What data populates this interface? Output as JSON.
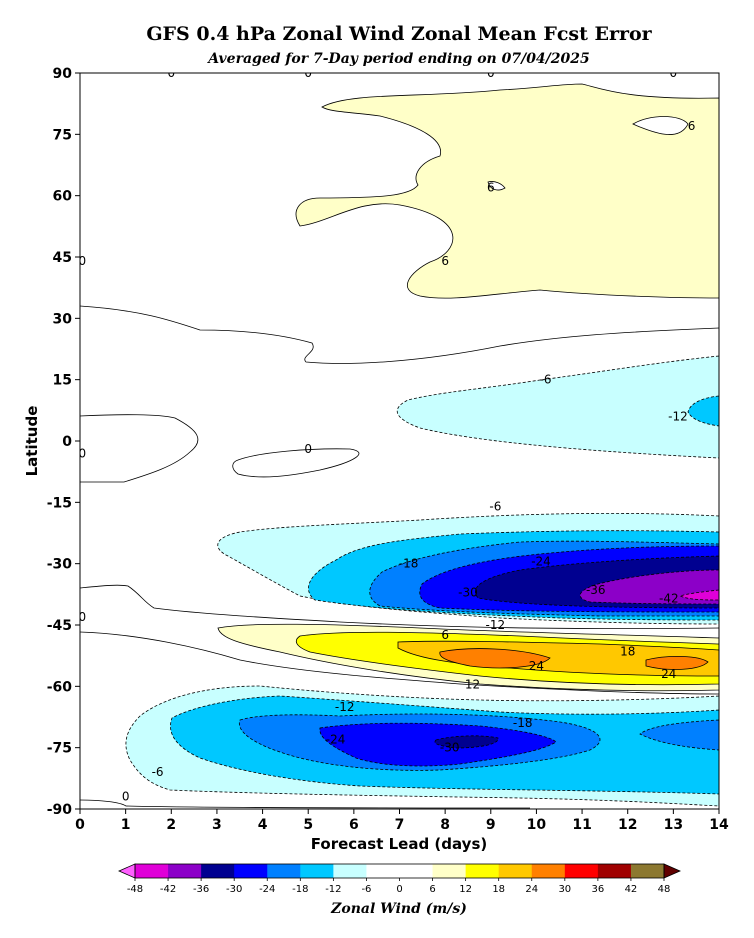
{
  "chart_data": {
    "type": "contour",
    "title": "GFS 0.4 hPa Zonal Wind Zonal Mean Fcst Error",
    "subtitle": "Averaged for 7-Day period ending on 07/04/2025",
    "xlabel": "Forecast Lead (days)",
    "ylabel": "Latitude",
    "xlim": [
      0,
      14
    ],
    "ylim": [
      -90,
      90
    ],
    "x_ticks": [
      0,
      1,
      2,
      3,
      4,
      5,
      6,
      7,
      8,
      9,
      10,
      11,
      12,
      13,
      14
    ],
    "y_ticks": [
      90,
      75,
      60,
      45,
      30,
      15,
      0,
      -15,
      -30,
      -45,
      -60,
      -75,
      -90
    ],
    "colorbar": {
      "label": "Zonal Wind (m/s)",
      "levels": [
        -48,
        -42,
        -36,
        -30,
        -24,
        -18,
        -12,
        -6,
        0,
        6,
        12,
        18,
        24,
        30,
        36,
        42,
        48
      ],
      "colors": [
        "#e000d8",
        "#8c00c8",
        "#000090",
        "#0000ff",
        "#0080ff",
        "#00c8ff",
        "#c8ffff",
        "#ffffff",
        "#ffffff",
        "#ffffc8",
        "#ffff00",
        "#ffc800",
        "#ff8000",
        "#ff0000",
        "#a00000",
        "#8c7830"
      ],
      "under_color": "#ff60ff",
      "over_color": "#600000"
    },
    "contour_labels": [
      {
        "value": "0",
        "x": 2.0,
        "y": 90
      },
      {
        "value": "0",
        "x": 5.0,
        "y": 90
      },
      {
        "value": "0",
        "x": 9.0,
        "y": 90
      },
      {
        "value": "0",
        "x": 13.0,
        "y": 90
      },
      {
        "value": "6",
        "x": 13.4,
        "y": 77
      },
      {
        "value": "6",
        "x": 9.0,
        "y": 62
      },
      {
        "value": "6",
        "x": 8.0,
        "y": 44
      },
      {
        "value": "0",
        "x": 0.05,
        "y": 44
      },
      {
        "value": "-6",
        "x": 10.2,
        "y": 15
      },
      {
        "value": "-12",
        "x": 13.1,
        "y": 6
      },
      {
        "value": "0",
        "x": 0.05,
        "y": -3
      },
      {
        "value": "0",
        "x": 5.0,
        "y": -2
      },
      {
        "value": "-6",
        "x": 9.1,
        "y": -16
      },
      {
        "value": "-18",
        "x": 7.2,
        "y": -30
      },
      {
        "value": "-24",
        "x": 10.1,
        "y": -29.5
      },
      {
        "value": "-30",
        "x": 8.5,
        "y": -37
      },
      {
        "value": "-36",
        "x": 11.3,
        "y": -36.5
      },
      {
        "value": "-42",
        "x": 12.9,
        "y": -38.5
      },
      {
        "value": "0",
        "x": 0.05,
        "y": -43
      },
      {
        "value": "-12",
        "x": 9.1,
        "y": -45
      },
      {
        "value": "6",
        "x": 8.0,
        "y": -47.5
      },
      {
        "value": "18",
        "x": 12.0,
        "y": -51.5
      },
      {
        "value": "24",
        "x": 10.0,
        "y": -55
      },
      {
        "value": "24",
        "x": 12.9,
        "y": -57
      },
      {
        "value": "12",
        "x": 8.6,
        "y": -59.5
      },
      {
        "value": "-12",
        "x": 5.8,
        "y": -65
      },
      {
        "value": "-18",
        "x": 9.7,
        "y": -69
      },
      {
        "value": "-24",
        "x": 5.6,
        "y": -73
      },
      {
        "value": "-30",
        "x": 8.1,
        "y": -75
      },
      {
        "value": "-6",
        "x": 1.7,
        "y": -81
      },
      {
        "value": "0",
        "x": 1.0,
        "y": -87
      }
    ]
  }
}
